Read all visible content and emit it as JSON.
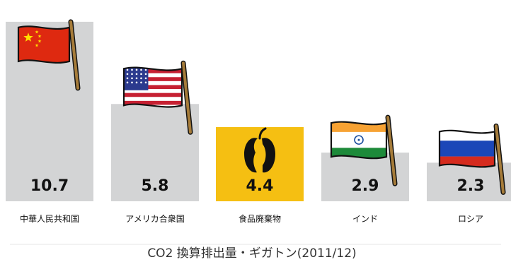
{
  "chart_data": {
    "type": "bar",
    "categories": [
      "中華人民共和国",
      "アメリカ合衆国",
      "食品廃棄物",
      "インド",
      "ロシア"
    ],
    "values": [
      10.7,
      5.8,
      4.4,
      2.9,
      2.3
    ],
    "value_labels": [
      "10.7",
      "5.8",
      "4.4",
      "2.9",
      "2.3"
    ],
    "icons": [
      "china-flag-icon",
      "usa-flag-icon",
      "apple-core-icon",
      "india-flag-icon",
      "russia-flag-icon"
    ],
    "bar_color": "#d3d4d5",
    "highlight_color": "#f5bf12",
    "highlight_index": 2,
    "ylim": [
      0,
      11.2
    ],
    "grid": false,
    "caption": "CO2 換算排出量・ギガトン(2011/12)"
  }
}
